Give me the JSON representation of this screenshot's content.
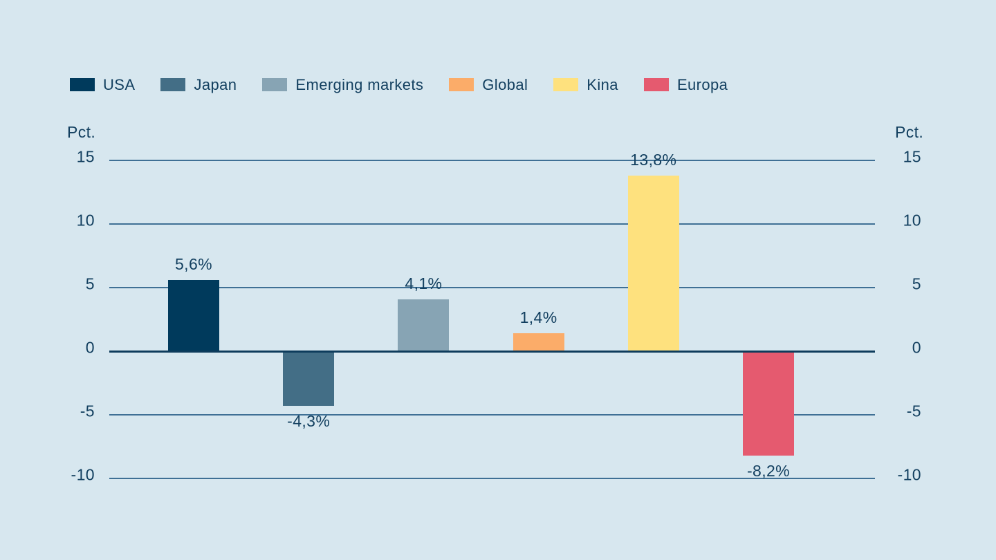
{
  "chart_data": {
    "type": "bar",
    "title": "",
    "unit_label": "Pct.",
    "categories": [
      "USA",
      "Japan",
      "Emerging markets",
      "Global",
      "Kina",
      "Europa"
    ],
    "values": [
      5.6,
      -4.3,
      4.1,
      1.4,
      13.8,
      -8.2
    ],
    "value_labels": [
      "5,6%",
      "-4,3%",
      "4,1%",
      "1,4%",
      "13,8%",
      "-8,2%"
    ],
    "bar_colors": [
      "#003a5c",
      "#436e86",
      "#87a4b4",
      "#fbac69",
      "#fee17e",
      "#e55a6f"
    ],
    "y_ticks": [
      15,
      10,
      5,
      0,
      -5,
      -10
    ],
    "ylim": [
      -10,
      15
    ],
    "grid": true,
    "legend_position": "top",
    "decimal_separator": ","
  },
  "colors": {
    "background": "#d7e7ef",
    "text": "#123f5f",
    "gridline": "#3f7095",
    "zero_line": "#0e3c5c"
  }
}
